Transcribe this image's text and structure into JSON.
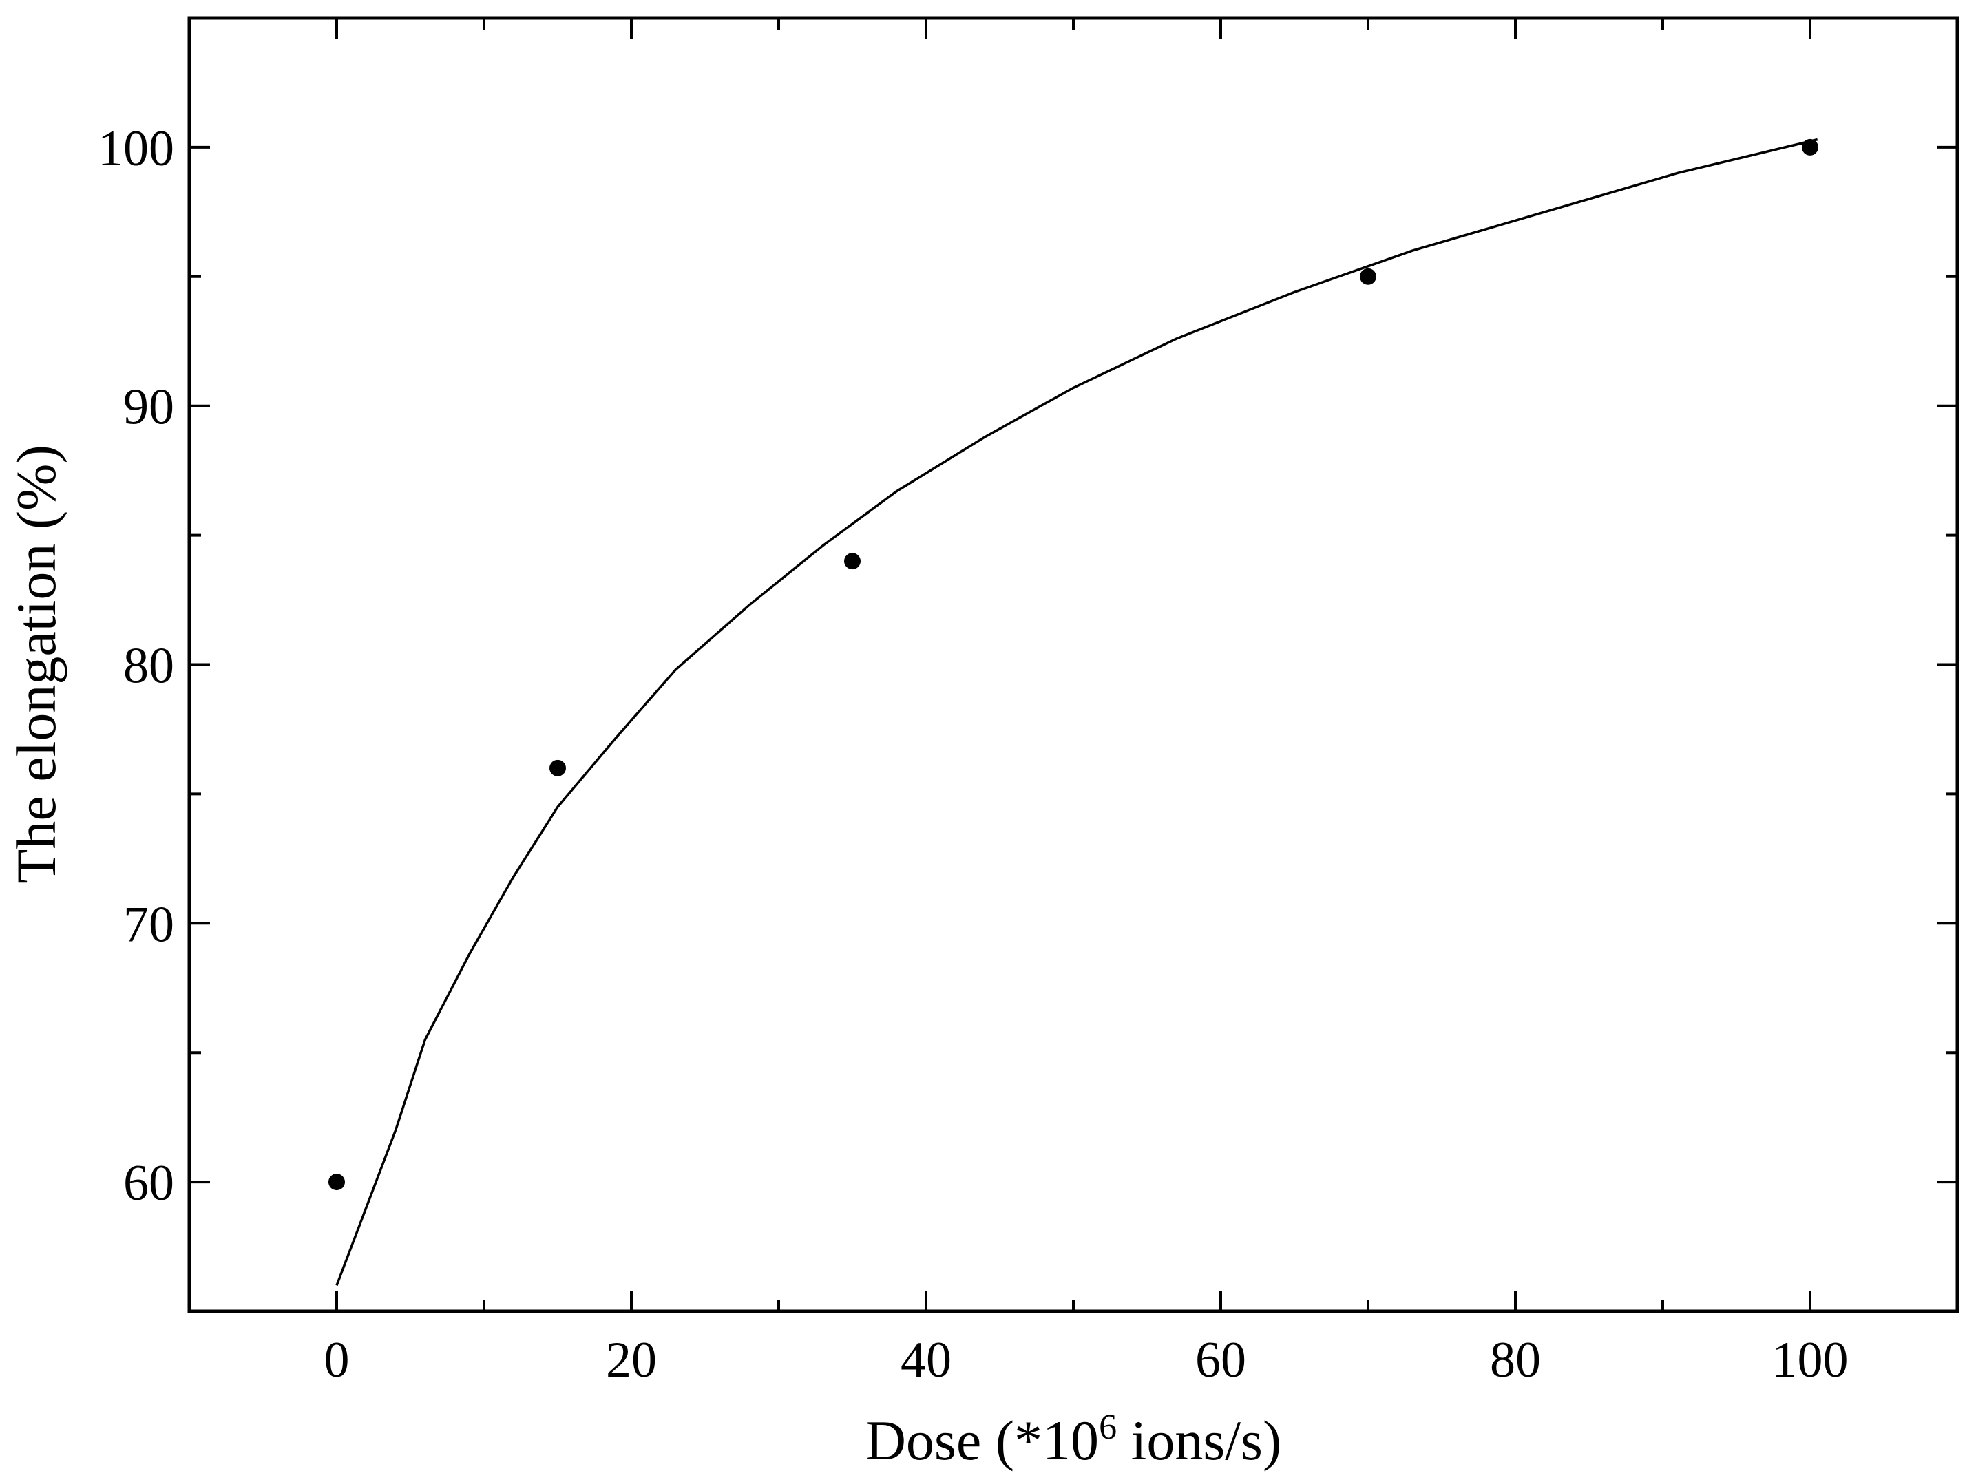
{
  "chart_data": {
    "type": "scatter",
    "xlabel": [
      "Dose (*10",
      "6",
      " ions/s)"
    ],
    "ylabel": "The elongation (%)",
    "xlim": [
      -10,
      110
    ],
    "ylim": [
      55,
      105
    ],
    "xticks": [
      0,
      20,
      40,
      60,
      80,
      100
    ],
    "yticks": [
      60,
      70,
      80,
      90,
      100
    ],
    "xminorticks": [
      -10,
      10,
      30,
      50,
      70,
      90,
      110
    ],
    "yminorticks": [
      65,
      75,
      85,
      95,
      105
    ],
    "mirror_ticks": true,
    "series": [
      {
        "style": "markers",
        "color": "#000000",
        "x": [
          0,
          15,
          35,
          70,
          100
        ],
        "values": [
          60,
          76,
          84,
          95,
          100
        ]
      },
      {
        "style": "line",
        "color": "#000000",
        "x": [
          0,
          2,
          4,
          6,
          9,
          12,
          15,
          19,
          23,
          28,
          33,
          38,
          44,
          50,
          57,
          65,
          73,
          82,
          91,
          100.5
        ],
        "values": [
          56,
          59,
          62,
          65.5,
          68.8,
          71.8,
          74.5,
          77.2,
          79.8,
          82.3,
          84.6,
          86.7,
          88.8,
          90.7,
          92.6,
          94.4,
          96,
          97.5,
          99,
          100.3
        ]
      }
    ]
  }
}
